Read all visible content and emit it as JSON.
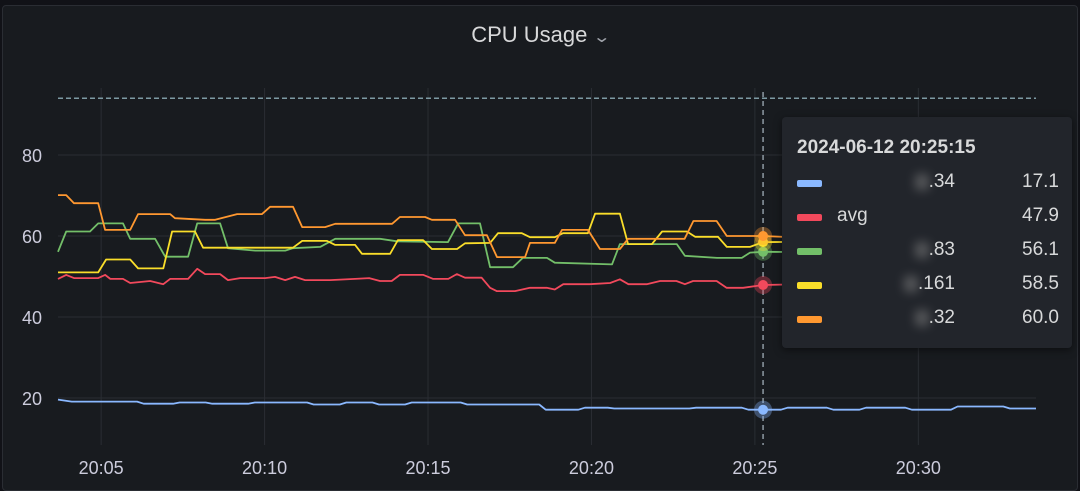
{
  "panel": {
    "title": "CPU Usage",
    "menu_icon": "chevron-down-icon"
  },
  "tooltip": {
    "time": "2024-06-12 20:25:15",
    "rows": [
      {
        "name": "",
        "series_suffix": ".34",
        "value": "17.1",
        "color": "#8ab8ff"
      },
      {
        "name": "avg",
        "series_suffix": "",
        "value": "47.9",
        "color": "#f2495c"
      },
      {
        "name": "",
        "series_suffix": ".83",
        "value": "56.1",
        "color": "#73bf69"
      },
      {
        "name": "",
        "series_suffix": ".161",
        "value": "58.5",
        "color": "#fade2a"
      },
      {
        "name": "",
        "series_suffix": ".32",
        "value": "60.0",
        "color": "#ff9830"
      }
    ]
  },
  "chart_data": {
    "type": "line",
    "title": "CPU Usage",
    "xlabel": "",
    "ylabel": "",
    "x_unit": "minutes after 20:00",
    "xlim": [
      3.68,
      33.6
    ],
    "ylim": [
      13.5,
      96
    ],
    "x_ticks": [
      {
        "v": 5,
        "label": "20:05"
      },
      {
        "v": 10,
        "label": "20:10"
      },
      {
        "v": 15,
        "label": "20:15"
      },
      {
        "v": 20,
        "label": "20:20"
      },
      {
        "v": 25,
        "label": "20:25"
      },
      {
        "v": 30,
        "label": "20:30"
      }
    ],
    "y_ticks": [
      {
        "v": 20,
        "label": "20"
      },
      {
        "v": 40,
        "label": "40"
      },
      {
        "v": 60,
        "label": "60"
      },
      {
        "v": 80,
        "label": "80"
      }
    ],
    "threshold": 94,
    "crosshair_x": 25.25,
    "grid": true,
    "series": [
      {
        "name": "…34",
        "color": "#8ab8ff",
        "points": [
          [
            3.68,
            19.6
          ],
          [
            4.1,
            19.1
          ],
          [
            6.1,
            19.1
          ],
          [
            6.3,
            18.6
          ],
          [
            7.2,
            18.6
          ],
          [
            7.4,
            18.9
          ],
          [
            8.2,
            18.9
          ],
          [
            8.4,
            18.6
          ],
          [
            9.5,
            18.6
          ],
          [
            9.7,
            18.9
          ],
          [
            11.3,
            18.9
          ],
          [
            11.5,
            18.4
          ],
          [
            12.3,
            18.4
          ],
          [
            12.5,
            18.9
          ],
          [
            13.3,
            18.9
          ],
          [
            13.5,
            18.4
          ],
          [
            14.3,
            18.4
          ],
          [
            14.5,
            18.9
          ],
          [
            16.0,
            18.9
          ],
          [
            16.2,
            18.4
          ],
          [
            18.4,
            18.4
          ],
          [
            18.6,
            17.1
          ],
          [
            19.6,
            17.1
          ],
          [
            19.8,
            17.6
          ],
          [
            20.5,
            17.6
          ],
          [
            20.7,
            17.4
          ],
          [
            23.0,
            17.4
          ],
          [
            23.2,
            17.6
          ],
          [
            24.6,
            17.6
          ],
          [
            24.8,
            17.1
          ],
          [
            25.8,
            17.1
          ],
          [
            26.0,
            17.6
          ],
          [
            27.2,
            17.6
          ],
          [
            27.4,
            17.1
          ],
          [
            28.2,
            17.1
          ],
          [
            28.4,
            17.6
          ],
          [
            29.6,
            17.6
          ],
          [
            29.8,
            17.1
          ],
          [
            31.0,
            17.1
          ],
          [
            31.2,
            17.9
          ],
          [
            32.6,
            17.9
          ],
          [
            32.8,
            17.4
          ],
          [
            33.6,
            17.4
          ]
        ]
      },
      {
        "name": "avg",
        "color": "#f2495c",
        "points": [
          [
            3.68,
            49.4
          ],
          [
            3.93,
            50.4
          ],
          [
            4.17,
            49.6
          ],
          [
            4.91,
            49.6
          ],
          [
            5.12,
            50.4
          ],
          [
            5.28,
            49.4
          ],
          [
            5.67,
            49.4
          ],
          [
            5.89,
            48.4
          ],
          [
            6.5,
            48.9
          ],
          [
            6.9,
            48.1
          ],
          [
            7.11,
            49.4
          ],
          [
            7.66,
            49.4
          ],
          [
            7.94,
            51.9
          ],
          [
            8.18,
            50.6
          ],
          [
            8.64,
            50.6
          ],
          [
            8.88,
            49.1
          ],
          [
            9.25,
            49.6
          ],
          [
            10.02,
            49.6
          ],
          [
            10.32,
            49.9
          ],
          [
            10.63,
            49.1
          ],
          [
            10.93,
            49.9
          ],
          [
            11.24,
            49.1
          ],
          [
            12.0,
            49.1
          ],
          [
            12.77,
            49.4
          ],
          [
            13.2,
            49.6
          ],
          [
            13.53,
            48.9
          ],
          [
            13.89,
            48.9
          ],
          [
            14.14,
            50.4
          ],
          [
            14.86,
            50.4
          ],
          [
            15.16,
            49.4
          ],
          [
            15.62,
            49.4
          ],
          [
            15.88,
            50.6
          ],
          [
            16.13,
            49.7
          ],
          [
            16.64,
            49.7
          ],
          [
            16.9,
            47.2
          ],
          [
            17.1,
            46.4
          ],
          [
            17.66,
            46.4
          ],
          [
            18.12,
            47.2
          ],
          [
            18.63,
            47.2
          ],
          [
            18.88,
            46.8
          ],
          [
            19.14,
            48.1
          ],
          [
            19.95,
            48.1
          ],
          [
            20.57,
            48.4
          ],
          [
            20.87,
            49.3
          ],
          [
            21.13,
            48.1
          ],
          [
            21.69,
            48.1
          ],
          [
            22.1,
            48.9
          ],
          [
            22.6,
            48.9
          ],
          [
            22.86,
            48.1
          ],
          [
            23.11,
            48.9
          ],
          [
            23.83,
            48.9
          ],
          [
            24.13,
            47.2
          ],
          [
            24.64,
            47.2
          ],
          [
            25.25,
            47.9
          ],
          [
            27,
            48.2
          ],
          [
            33.6,
            48.0
          ]
        ]
      },
      {
        "name": "…83",
        "color": "#73bf69",
        "points": [
          [
            3.68,
            56.1
          ],
          [
            3.93,
            61.1
          ],
          [
            4.66,
            61.1
          ],
          [
            4.91,
            63.1
          ],
          [
            5.67,
            63.1
          ],
          [
            5.89,
            59.3
          ],
          [
            6.65,
            59.3
          ],
          [
            6.96,
            54.9
          ],
          [
            7.66,
            54.9
          ],
          [
            7.94,
            63.1
          ],
          [
            8.64,
            63.1
          ],
          [
            8.88,
            57.0
          ],
          [
            9.71,
            56.4
          ],
          [
            10.63,
            56.4
          ],
          [
            10.87,
            57.0
          ],
          [
            11.7,
            57.3
          ],
          [
            12.16,
            59.3
          ],
          [
            13.53,
            59.3
          ],
          [
            14.05,
            58.7
          ],
          [
            15.61,
            58.5
          ],
          [
            15.92,
            63.1
          ],
          [
            16.59,
            63.1
          ],
          [
            16.9,
            52.3
          ],
          [
            17.6,
            52.3
          ],
          [
            17.9,
            54.6
          ],
          [
            18.64,
            54.6
          ],
          [
            18.88,
            53.4
          ],
          [
            20.63,
            53.0
          ],
          [
            20.87,
            58.0
          ],
          [
            22.61,
            58.0
          ],
          [
            22.86,
            55.1
          ],
          [
            23.84,
            54.6
          ],
          [
            24.6,
            54.6
          ],
          [
            24.85,
            55.9
          ],
          [
            25.25,
            56.1
          ],
          [
            27,
            56.0
          ],
          [
            33.6,
            56.0
          ]
        ]
      },
      {
        "name": "…161",
        "color": "#fade2a",
        "points": [
          [
            3.68,
            51.0
          ],
          [
            4.91,
            51.0
          ],
          [
            5.15,
            54.2
          ],
          [
            5.89,
            54.2
          ],
          [
            6.13,
            52.0
          ],
          [
            6.9,
            52.0
          ],
          [
            7.17,
            61.1
          ],
          [
            7.87,
            61.1
          ],
          [
            8.12,
            57.1
          ],
          [
            10.0,
            57.1
          ],
          [
            10.87,
            57.1
          ],
          [
            11.15,
            58.8
          ],
          [
            11.91,
            58.8
          ],
          [
            12.16,
            57.8
          ],
          [
            12.77,
            57.8
          ],
          [
            12.98,
            55.6
          ],
          [
            13.84,
            55.6
          ],
          [
            14.08,
            59.0
          ],
          [
            14.85,
            59.0
          ],
          [
            15.12,
            56.8
          ],
          [
            15.89,
            56.8
          ],
          [
            16.13,
            58.2
          ],
          [
            16.9,
            58.3
          ],
          [
            17.14,
            60.7
          ],
          [
            17.87,
            60.7
          ],
          [
            18.12,
            59.7
          ],
          [
            18.88,
            59.7
          ],
          [
            19.13,
            60.7
          ],
          [
            19.89,
            60.7
          ],
          [
            20.11,
            65.5
          ],
          [
            20.87,
            65.5
          ],
          [
            21.12,
            58.0
          ],
          [
            21.85,
            58.0
          ],
          [
            22.16,
            61.1
          ],
          [
            22.92,
            61.1
          ],
          [
            23.17,
            59.8
          ],
          [
            23.87,
            59.8
          ],
          [
            24.14,
            57.3
          ],
          [
            24.85,
            57.3
          ],
          [
            25.25,
            58.5
          ],
          [
            27,
            58.6
          ],
          [
            33.6,
            58.6
          ]
        ]
      },
      {
        "name": "…32",
        "color": "#ff9830",
        "points": [
          [
            3.68,
            70.1
          ],
          [
            3.93,
            70.1
          ],
          [
            4.17,
            68.1
          ],
          [
            4.91,
            68.1
          ],
          [
            5.12,
            61.5
          ],
          [
            5.89,
            61.5
          ],
          [
            6.13,
            65.4
          ],
          [
            7.11,
            65.4
          ],
          [
            7.26,
            64.4
          ],
          [
            8.18,
            64.0
          ],
          [
            8.49,
            64.0
          ],
          [
            9.16,
            65.4
          ],
          [
            9.92,
            65.4
          ],
          [
            10.17,
            67.2
          ],
          [
            10.87,
            67.2
          ],
          [
            11.15,
            62.2
          ],
          [
            11.85,
            62.2
          ],
          [
            12.16,
            63.0
          ],
          [
            13.9,
            63.0
          ],
          [
            14.14,
            64.7
          ],
          [
            14.91,
            64.7
          ],
          [
            15.12,
            64.0
          ],
          [
            15.83,
            64.0
          ],
          [
            16.13,
            60.2
          ],
          [
            16.8,
            60.2
          ],
          [
            17.11,
            54.8
          ],
          [
            17.97,
            54.8
          ],
          [
            18.12,
            58.3
          ],
          [
            18.88,
            58.3
          ],
          [
            19.1,
            61.5
          ],
          [
            19.89,
            61.5
          ],
          [
            20.26,
            56.8
          ],
          [
            20.87,
            56.8
          ],
          [
            21.12,
            59.3
          ],
          [
            22.85,
            59.3
          ],
          [
            23.12,
            63.7
          ],
          [
            23.83,
            63.7
          ],
          [
            24.14,
            60.0
          ],
          [
            25.25,
            60.0
          ],
          [
            26.4,
            59.6
          ],
          [
            33.6,
            59.5
          ]
        ]
      }
    ]
  }
}
